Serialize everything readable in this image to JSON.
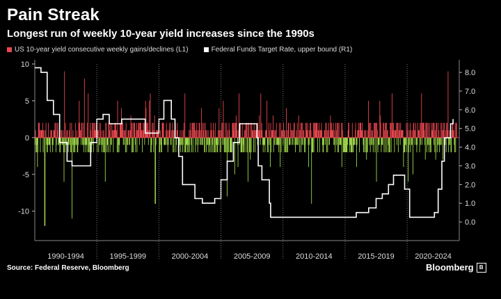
{
  "title": "Pain Streak",
  "subtitle": "Longest run of weekly 10-year yield increases since the 1990s",
  "legend": [
    {
      "label": "US 10-year yield consecutive weekly gains/declines (L1)",
      "color": "#e8474f"
    },
    {
      "label": "Federal Funds Target Rate, upper bound (R1)",
      "color": "#ffffff"
    }
  ],
  "source": "Source: Federal Reserve, Bloomberg",
  "brand": "Bloomberg",
  "chart_data": {
    "type": "bar",
    "title": "Pain Streak",
    "colors": {
      "gains": "#e8474f",
      "declines": "#9fd84a",
      "rate": "#ffffff",
      "zero_line": "#e8474f",
      "grid": "#777777"
    },
    "x_ticks": [
      "1990-1994",
      "1995-1999",
      "2000-2004",
      "2005-2009",
      "2010-2014",
      "2015-2019",
      "2020-2024"
    ],
    "x_range": [
      1990,
      2024.2
    ],
    "y_left": {
      "ticks": [
        10,
        5,
        0,
        -5,
        -10
      ],
      "range": [
        -14,
        10
      ]
    },
    "y_right": {
      "ticks": [
        "8.0",
        "7.0",
        "6.0",
        "5.0",
        "4.0",
        "3.0",
        "2.0",
        "1.0",
        "0.0"
      ],
      "range": [
        -1,
        8.45
      ]
    },
    "grid": "vertical dotted separators",
    "streak_series": {
      "name": "US 10-year yield consecutive weekly gains/declines (L1)",
      "axis": "left",
      "extremes": [
        {
          "x": 1992.4,
          "y": 9
        },
        {
          "x": 1990.8,
          "y": -12
        },
        {
          "x": 1993.0,
          "y": -11
        },
        {
          "x": 1994.0,
          "y": 8
        },
        {
          "x": 1999.7,
          "y": -9
        },
        {
          "x": 2005.5,
          "y": -8
        },
        {
          "x": 2012.3,
          "y": -9
        },
        {
          "x": 2023.3,
          "y": 9
        }
      ]
    },
    "rate_series": {
      "name": "Federal Funds Target Rate, upper bound (R1)",
      "axis": "right",
      "x": [
        1990.0,
        1990.5,
        1991.0,
        1991.5,
        1992.0,
        1992.6,
        1993.0,
        1994.0,
        1994.5,
        1995.0,
        1995.5,
        1996.0,
        1997.0,
        1998.5,
        1998.9,
        1999.5,
        2000.0,
        2000.4,
        2001.0,
        2001.3,
        2001.6,
        2001.9,
        2002.9,
        2003.5,
        2004.5,
        2005.0,
        2005.5,
        2006.0,
        2006.5,
        2007.6,
        2007.9,
        2008.0,
        2008.3,
        2008.9,
        2009.0,
        2015.9,
        2016.9,
        2017.5,
        2018.0,
        2018.5,
        2018.9,
        2019.5,
        2019.8,
        2020.2,
        2022.2,
        2022.5,
        2022.8,
        2023.0,
        2023.5,
        2023.7
      ],
      "y": [
        8.25,
        8.0,
        6.5,
        5.75,
        4.25,
        3.25,
        3.0,
        3.0,
        4.25,
        5.5,
        5.75,
        5.25,
        5.5,
        5.5,
        4.75,
        4.75,
        5.5,
        6.5,
        5.5,
        4.5,
        3.5,
        2.0,
        1.25,
        1.0,
        1.25,
        2.25,
        3.25,
        4.25,
        5.25,
        5.25,
        4.5,
        3.0,
        2.25,
        1.0,
        0.25,
        0.5,
        0.75,
        1.25,
        1.5,
        2.0,
        2.5,
        2.5,
        1.75,
        0.25,
        0.5,
        1.75,
        3.25,
        4.5,
        5.25,
        5.5
      ]
    }
  }
}
